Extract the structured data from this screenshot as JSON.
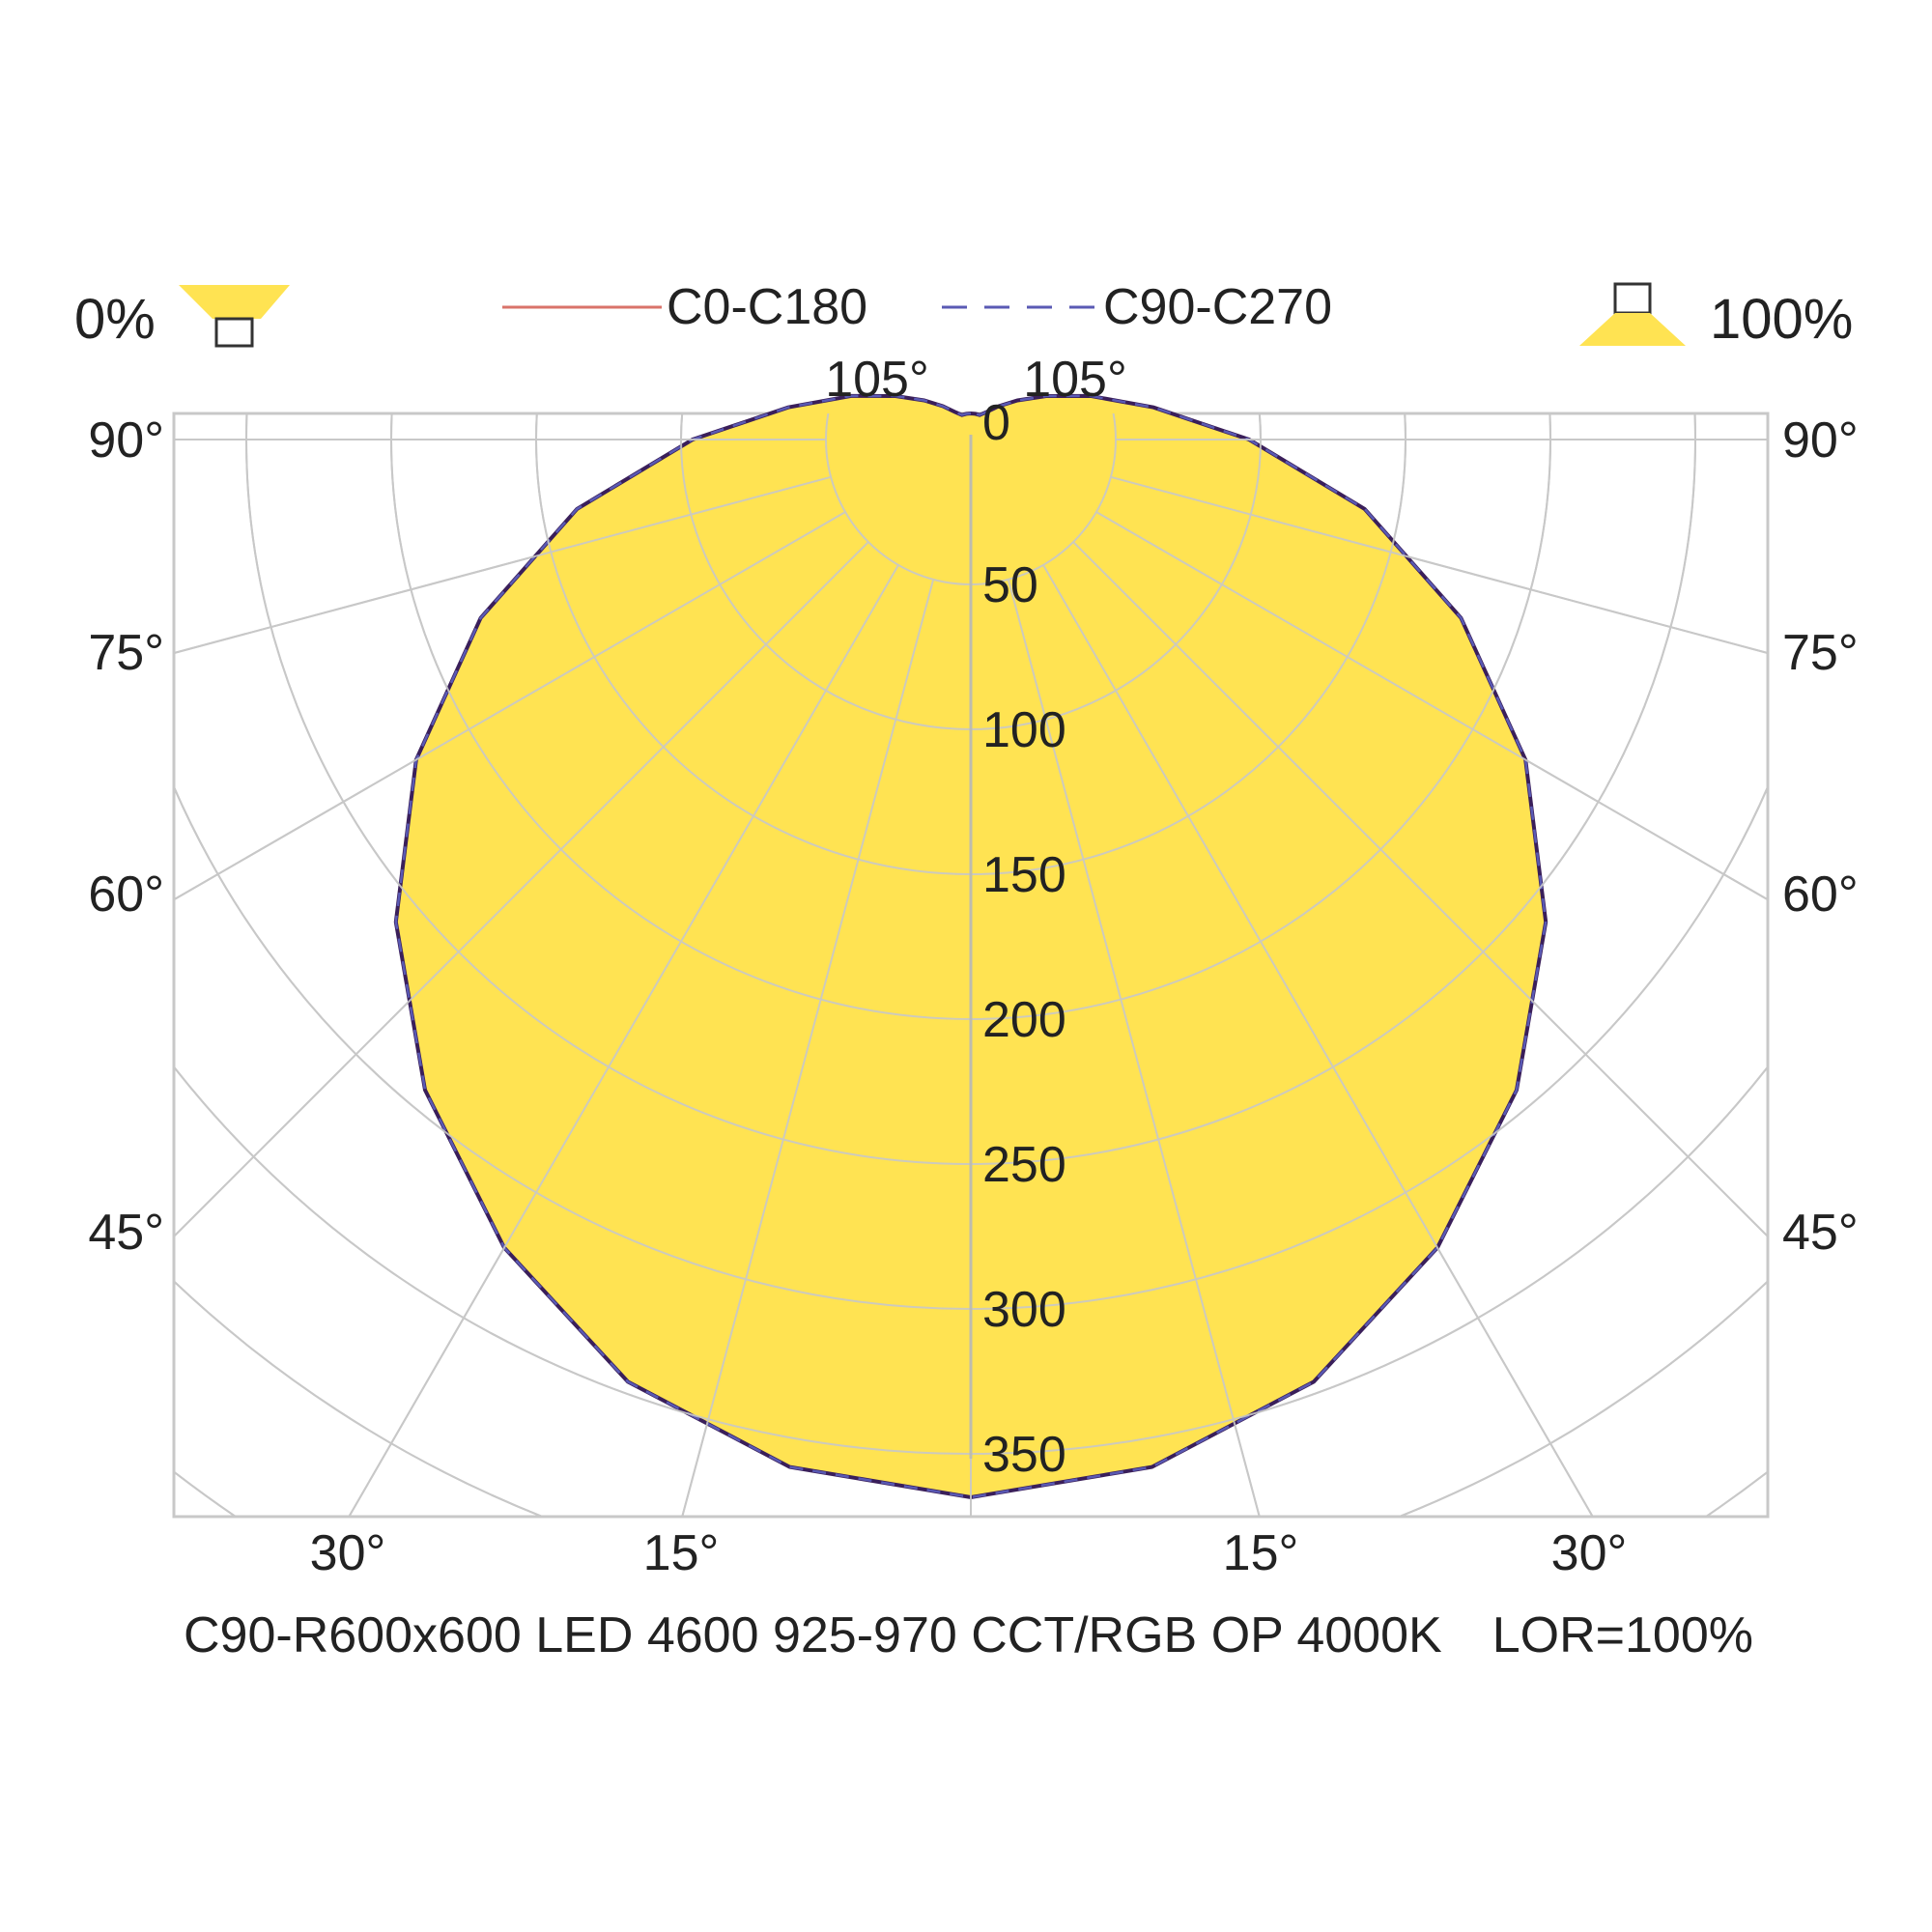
{
  "header": {
    "downward_ratio": "0%",
    "upward_ratio": "100%",
    "legend": [
      {
        "name": "C0-C180",
        "color": "#d9736a",
        "dash": "solid"
      },
      {
        "name": "C90-C270",
        "color": "#5a5ab4",
        "dash": "dashed"
      }
    ]
  },
  "footer": {
    "product_label": "C90-R600x600 LED 4600 925-970 CCT/RGB OP 4000K",
    "lor_label": "LOR=100%"
  },
  "colors": {
    "fill": "#ffe352",
    "grid": "#c8c8c8",
    "curve_outline": "#3a1f5a"
  },
  "chart_data": {
    "type": "polar",
    "title": "",
    "angle_labels": {
      "top": [
        "105°",
        "105°"
      ],
      "left": [
        "90°",
        "75°",
        "60°",
        "45°"
      ],
      "right": [
        "90°",
        "75°",
        "60°",
        "45°"
      ],
      "bottom": [
        "30°",
        "15°",
        "15°",
        "30°"
      ]
    },
    "radial_ticks": [
      0,
      50,
      100,
      150,
      200,
      250,
      300,
      350
    ],
    "radial_range": [
      0,
      350
    ],
    "grid": true,
    "series": [
      {
        "name": "C0-C180",
        "angles": [
          0,
          10,
          20,
          30,
          40,
          50,
          60,
          70,
          80,
          90,
          100,
          110,
          120,
          130,
          140,
          150,
          160,
          170,
          180
        ],
        "values": [
          365,
          360,
          346,
          322,
          293,
          259,
          221,
          180,
          138,
          96,
          64,
          44,
          30,
          21,
          15,
          11,
          9,
          9,
          9
        ]
      },
      {
        "name": "C90-C270",
        "angles": [
          0,
          10,
          20,
          30,
          40,
          50,
          60,
          70,
          80,
          90,
          100,
          110,
          120,
          130,
          140,
          150,
          160,
          170,
          180
        ],
        "values": [
          365,
          360,
          346,
          322,
          293,
          259,
          221,
          180,
          138,
          96,
          64,
          44,
          30,
          21,
          15,
          11,
          9,
          9,
          9
        ]
      }
    ]
  }
}
